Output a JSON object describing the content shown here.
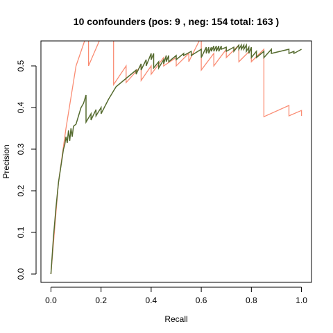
{
  "chart_data": {
    "type": "line",
    "title": "10 confounders  (pos:  9 , neg:  154 total:  163 )",
    "xlabel": "Recall",
    "ylabel": "Precision",
    "xlim": [
      -0.04,
      1.04
    ],
    "ylim": [
      -0.02,
      0.56
    ],
    "xticks": [
      0.0,
      0.2,
      0.4,
      0.6,
      0.8,
      1.0
    ],
    "xtick_labels": [
      "0.0",
      "0.2",
      "0.4",
      "0.6",
      "0.8",
      "1.0"
    ],
    "yticks": [
      0.0,
      0.1,
      0.2,
      0.3,
      0.4,
      0.5
    ],
    "ytick_labels": [
      "0.0",
      "0.1",
      "0.2",
      "0.3",
      "0.4",
      "0.5"
    ],
    "grid": false,
    "series": [
      {
        "color": "#fa8c73",
        "x": [
          0.0,
          0.03,
          0.06,
          0.1,
          0.14,
          0.15,
          0.15,
          0.2,
          0.2,
          0.25,
          0.25,
          0.3,
          0.3,
          0.36,
          0.36,
          0.4,
          0.4,
          0.45,
          0.45,
          0.5,
          0.5,
          0.55,
          0.55,
          0.6,
          0.6,
          0.65,
          0.65,
          0.7,
          0.7,
          0.75,
          0.75,
          0.8,
          0.8,
          0.85,
          0.85,
          0.95,
          0.95,
          1.0,
          1.0
        ],
        "y": [
          0.0,
          0.22,
          0.35,
          0.5,
          0.57,
          0.57,
          0.5,
          0.57,
          0.57,
          0.57,
          0.455,
          0.5,
          0.46,
          0.5,
          0.465,
          0.5,
          0.48,
          0.52,
          0.5,
          0.52,
          0.5,
          0.53,
          0.51,
          0.57,
          0.49,
          0.53,
          0.5,
          0.54,
          0.52,
          0.55,
          0.51,
          0.54,
          0.51,
          0.54,
          0.378,
          0.405,
          0.38,
          0.393,
          0.38
        ]
      },
      {
        "color": "#556b2f",
        "x": [
          0.0,
          0.01,
          0.02,
          0.03,
          0.04,
          0.05,
          0.055,
          0.06,
          0.065,
          0.07,
          0.075,
          0.08,
          0.085,
          0.09,
          0.1,
          0.11,
          0.12,
          0.13,
          0.14,
          0.14,
          0.16,
          0.16,
          0.18,
          0.18,
          0.2,
          0.2,
          0.23,
          0.26,
          0.3,
          0.34,
          0.34,
          0.36,
          0.36,
          0.38,
          0.38,
          0.4,
          0.4,
          0.41,
          0.41,
          0.43,
          0.43,
          0.45,
          0.45,
          0.46,
          0.46,
          0.47,
          0.47,
          0.5,
          0.5,
          0.53,
          0.53,
          0.56,
          0.56,
          0.6,
          0.6,
          0.62,
          0.62,
          0.63,
          0.63,
          0.64,
          0.64,
          0.65,
          0.65,
          0.66,
          0.66,
          0.67,
          0.67,
          0.68,
          0.68,
          0.7,
          0.7,
          0.73,
          0.73,
          0.75,
          0.75,
          0.76,
          0.76,
          0.77,
          0.77,
          0.78,
          0.78,
          0.79,
          0.79,
          0.8,
          0.8,
          0.82,
          0.82,
          0.85,
          0.85,
          0.88,
          0.88,
          0.95,
          0.95,
          0.97,
          0.97,
          1.0
        ],
        "y": [
          0.0,
          0.09,
          0.16,
          0.22,
          0.26,
          0.3,
          0.31,
          0.33,
          0.315,
          0.345,
          0.32,
          0.35,
          0.33,
          0.355,
          0.36,
          0.38,
          0.4,
          0.41,
          0.43,
          0.365,
          0.385,
          0.37,
          0.395,
          0.38,
          0.4,
          0.385,
          0.42,
          0.45,
          0.47,
          0.49,
          0.48,
          0.505,
          0.49,
          0.515,
          0.5,
          0.53,
          0.515,
          0.53,
          0.495,
          0.51,
          0.495,
          0.515,
          0.505,
          0.525,
          0.51,
          0.525,
          0.51,
          0.525,
          0.515,
          0.53,
          0.525,
          0.535,
          0.525,
          0.54,
          0.52,
          0.545,
          0.53,
          0.545,
          0.53,
          0.545,
          0.535,
          0.548,
          0.535,
          0.548,
          0.535,
          0.548,
          0.535,
          0.548,
          0.54,
          0.545,
          0.535,
          0.545,
          0.535,
          0.55,
          0.54,
          0.55,
          0.54,
          0.55,
          0.54,
          0.55,
          0.535,
          0.545,
          0.53,
          0.545,
          0.52,
          0.535,
          0.52,
          0.535,
          0.52,
          0.54,
          0.53,
          0.54,
          0.53,
          0.535,
          0.53,
          0.54
        ]
      }
    ]
  }
}
